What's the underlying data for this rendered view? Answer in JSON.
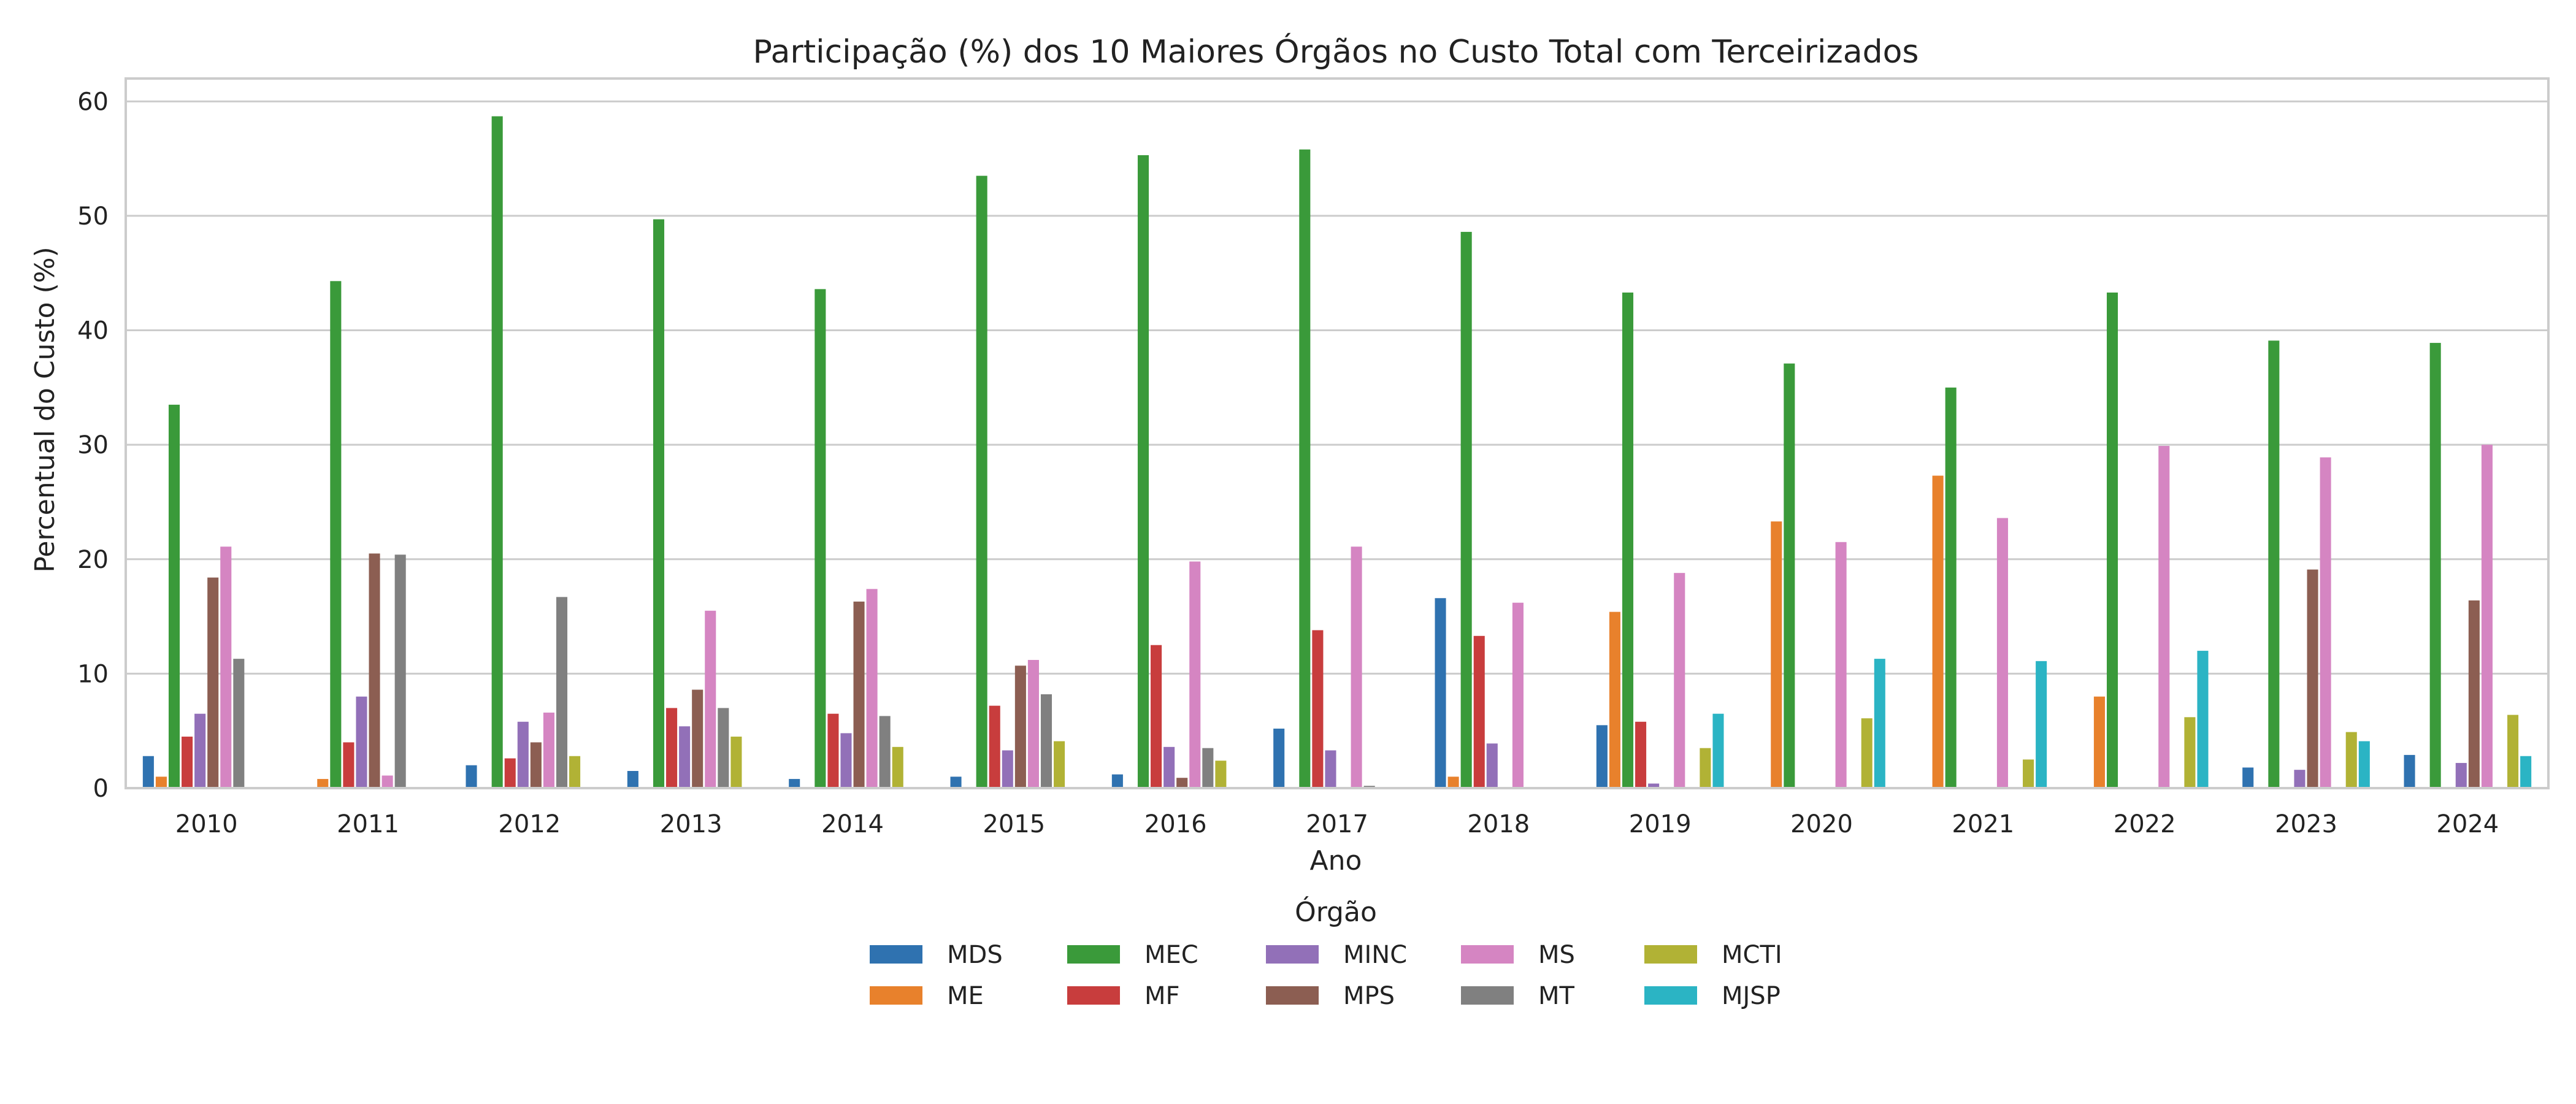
{
  "chart_data": {
    "type": "bar",
    "title": "Participação (%) dos 10 Maiores Órgãos no Custo Total com Terceirizados",
    "xlabel": "Ano",
    "ylabel": "Percentual do Custo (%)",
    "ylim": [
      0,
      62
    ],
    "yticks": [
      "0",
      "10",
      "20",
      "30",
      "40",
      "50",
      "60"
    ],
    "grid": true,
    "legend_title": "Órgão",
    "legend_position": "bottom-center",
    "categories": [
      "2010",
      "2011",
      "2012",
      "2013",
      "2014",
      "2015",
      "2016",
      "2017",
      "2018",
      "2019",
      "2020",
      "2021",
      "2022",
      "2023",
      "2024"
    ],
    "series": [
      {
        "name": "MDS",
        "color": "#2f72b0",
        "values": [
          2.8,
          0,
          2.0,
          1.5,
          0.8,
          1.0,
          1.2,
          5.2,
          16.6,
          5.5,
          0,
          0,
          0,
          1.8,
          2.9
        ]
      },
      {
        "name": "ME",
        "color": "#e8812c",
        "values": [
          1.0,
          0.8,
          0,
          0,
          0,
          0,
          0,
          0,
          1.0,
          15.4,
          23.3,
          27.3,
          8.0,
          0,
          0
        ]
      },
      {
        "name": "MEC",
        "color": "#3a9a3a",
        "values": [
          33.5,
          44.3,
          58.7,
          49.7,
          43.6,
          53.5,
          55.3,
          55.8,
          48.6,
          43.3,
          37.1,
          35.0,
          43.3,
          39.1,
          38.9
        ]
      },
      {
        "name": "MF",
        "color": "#c83d3d",
        "values": [
          4.5,
          4.0,
          2.6,
          7.0,
          6.5,
          7.2,
          12.5,
          13.8,
          13.3,
          5.8,
          0,
          0,
          0,
          0,
          0
        ]
      },
      {
        "name": "MINC",
        "color": "#9270b8",
        "values": [
          6.5,
          8.0,
          5.8,
          5.4,
          4.8,
          3.3,
          3.6,
          3.3,
          3.9,
          0.4,
          0,
          0,
          0,
          1.6,
          2.2
        ]
      },
      {
        "name": "MPS",
        "color": "#8c5e52",
        "values": [
          18.4,
          20.5,
          4.0,
          8.6,
          16.3,
          10.7,
          0.9,
          0,
          0,
          0,
          0,
          0,
          0,
          19.1,
          16.4
        ]
      },
      {
        "name": "MS",
        "color": "#d585c2",
        "values": [
          21.1,
          1.1,
          6.6,
          15.5,
          17.4,
          11.2,
          19.8,
          21.1,
          16.2,
          18.8,
          21.5,
          23.6,
          29.9,
          28.9,
          30.0
        ]
      },
      {
        "name": "MT",
        "color": "#808080",
        "values": [
          11.3,
          20.4,
          16.7,
          7.0,
          6.3,
          8.2,
          3.5,
          0.2,
          0,
          0,
          0,
          0,
          0,
          0,
          0
        ]
      },
      {
        "name": "MCTI",
        "color": "#b1b235",
        "values": [
          0,
          0,
          2.8,
          4.5,
          3.6,
          4.1,
          2.4,
          0,
          0,
          3.5,
          6.1,
          2.5,
          6.2,
          4.9,
          6.4
        ]
      },
      {
        "name": "MJSP",
        "color": "#2bb4c4",
        "values": [
          0,
          0,
          0,
          0,
          0,
          0,
          0,
          0,
          0,
          6.5,
          11.3,
          11.1,
          12.0,
          4.1,
          2.8
        ]
      }
    ]
  }
}
